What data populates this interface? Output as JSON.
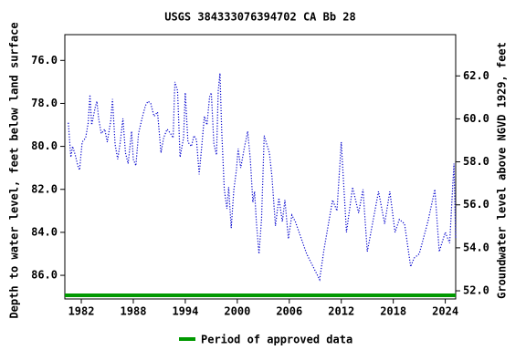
{
  "chart_data": {
    "type": "line",
    "title": "USGS 384333076394702 CA Bb  28",
    "ylabel": "Depth to water level, feet below land surface",
    "y2label": "Groundwater level above NGVD 1929, feet",
    "xlim": [
      1980.1,
      2025.2
    ],
    "xticks": [
      1982,
      1988,
      1994,
      2000,
      2006,
      2012,
      2018,
      2024
    ],
    "ylim": [
      74.8,
      87.1
    ],
    "yticks": [
      {
        "value": 76,
        "label": "76.0"
      },
      {
        "value": 78,
        "label": "78.0"
      },
      {
        "value": 80,
        "label": "80.0"
      },
      {
        "value": 82,
        "label": "82.0"
      },
      {
        "value": 84,
        "label": "84.0"
      },
      {
        "value": 86,
        "label": "86.0"
      }
    ],
    "y2lim": [
      63.92,
      51.62
    ],
    "y2ticks": [
      {
        "value": 62,
        "label": "62.0"
      },
      {
        "value": 60,
        "label": "60.0"
      },
      {
        "value": 58,
        "label": "58.0"
      },
      {
        "value": 56,
        "label": "56.0"
      },
      {
        "value": 54,
        "label": "54.0"
      },
      {
        "value": 52,
        "label": "52.0"
      }
    ],
    "series": [
      {
        "name": "Depth to water level",
        "color": "#0000cc",
        "x": [
          1980.5,
          1980.8,
          1981.0,
          1981.3,
          1981.6,
          1981.8,
          1982.1,
          1982.5,
          1982.8,
          1983.0,
          1983.2,
          1983.6,
          1983.8,
          1984.0,
          1984.3,
          1984.7,
          1985.0,
          1985.4,
          1985.6,
          1985.9,
          1986.2,
          1986.5,
          1986.8,
          1987.1,
          1987.4,
          1987.8,
          1988.0,
          1988.3,
          1988.6,
          1989.0,
          1989.4,
          1989.7,
          1990.0,
          1990.4,
          1990.8,
          1991.2,
          1991.5,
          1991.9,
          1992.3,
          1992.6,
          1992.8,
          1993.1,
          1993.4,
          1993.8,
          1994.0,
          1994.3,
          1994.7,
          1995.0,
          1995.3,
          1995.6,
          1995.9,
          1996.2,
          1996.5,
          1996.8,
          1997.0,
          1997.3,
          1997.6,
          1997.8,
          1998.0,
          1998.2,
          1998.5,
          1998.8,
          1999.0,
          1999.3,
          1999.6,
          1999.9,
          2000.1,
          2000.4,
          2000.8,
          2001.2,
          2001.5,
          2001.8,
          2002.0,
          2002.2,
          2002.5,
          2002.8,
          2003.1,
          2003.4,
          2003.7,
          2004.0,
          2004.4,
          2004.8,
          2005.2,
          2005.5,
          2005.9,
          2006.3,
          2006.7,
          2008.0,
          2009.5,
          2010.0,
          2011.0,
          2011.5,
          2012.0,
          2012.6,
          2013.3,
          2014.0,
          2014.5,
          2015.0,
          2016.3,
          2017.0,
          2017.6,
          2018.2,
          2018.7,
          2019.3,
          2020.0,
          2020.4,
          2021.0,
          2022.0,
          2022.8,
          2023.3,
          2024.0,
          2024.5,
          2025.0,
          2025.2
        ],
        "values": [
          78.9,
          80.5,
          80.0,
          80.4,
          80.9,
          81.1,
          79.8,
          79.6,
          78.9,
          77.6,
          79.0,
          78.2,
          77.9,
          78.7,
          79.4,
          79.2,
          79.8,
          78.8,
          77.8,
          79.9,
          80.6,
          79.8,
          78.7,
          80.3,
          80.8,
          79.3,
          80.6,
          80.9,
          79.4,
          78.7,
          78.1,
          77.9,
          78.0,
          78.6,
          78.4,
          80.3,
          79.6,
          79.2,
          79.4,
          79.6,
          77.0,
          77.4,
          80.5,
          79.6,
          77.5,
          79.8,
          80.0,
          79.5,
          79.7,
          81.3,
          80.0,
          78.6,
          79.0,
          77.7,
          77.5,
          79.9,
          80.4,
          77.4,
          76.6,
          79.3,
          82.0,
          82.9,
          81.9,
          83.8,
          82.0,
          81.1,
          80.1,
          81.0,
          80.1,
          79.3,
          80.6,
          82.6,
          82.1,
          83.5,
          85.0,
          83.4,
          79.5,
          79.9,
          80.3,
          81.4,
          83.7,
          82.4,
          83.5,
          82.5,
          84.3,
          83.2,
          83.5,
          85.0,
          86.2,
          84.8,
          82.5,
          83.0,
          79.8,
          84.0,
          81.9,
          83.1,
          82.0,
          84.9,
          82.1,
          83.6,
          82.1,
          84.0,
          83.4,
          83.6,
          85.6,
          85.2,
          85.0,
          83.5,
          82.0,
          84.9,
          84.0,
          84.5,
          80.8,
          84.3
        ]
      }
    ],
    "approved_period": [
      1980.1,
      2025.2
    ],
    "approved_color": "#009900",
    "legend_label": "Period of approved data"
  }
}
